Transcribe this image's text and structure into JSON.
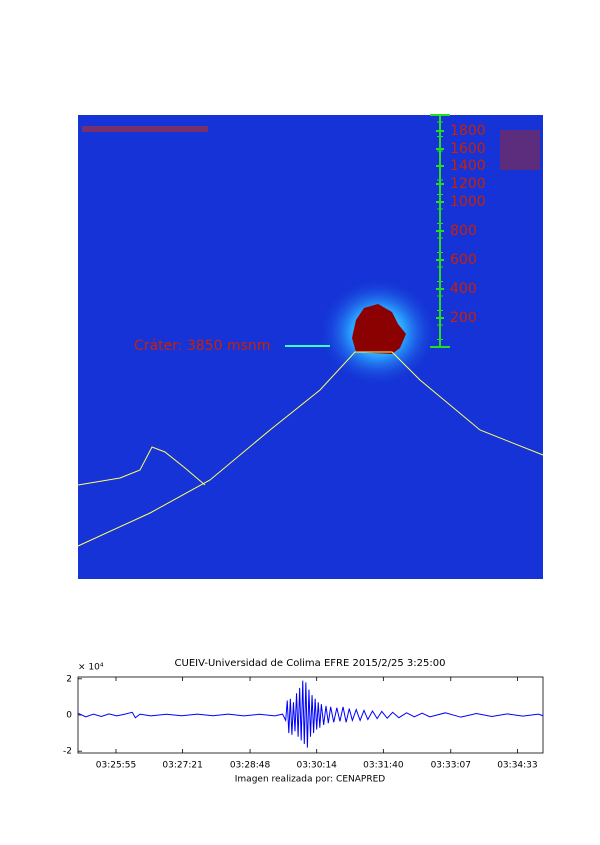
{
  "image": {
    "crater_label": "Cráter: 3850 msnm",
    "scale_labels": [
      1800,
      1600,
      1400,
      1200,
      1000,
      800,
      600,
      400,
      200
    ]
  },
  "chart_data": {
    "type": "line",
    "title": "CUEIV-Universidad de Colima EFRE 2015/2/25 3:25:00",
    "x_label": "Imagen realizada por: CENAPRED",
    "y_scale_label": "× 10⁴",
    "color": "#0000ff",
    "x": [
      6,
      16,
      26,
      36,
      46,
      56,
      66,
      76,
      80,
      86,
      100,
      120,
      140,
      160,
      180,
      200,
      220,
      240,
      260,
      270,
      274,
      276,
      278,
      280,
      282,
      284,
      286,
      288,
      290,
      292,
      294,
      296,
      298,
      300,
      302,
      304,
      306,
      308,
      310,
      312,
      314,
      316,
      318,
      320,
      323,
      326,
      329,
      332,
      336,
      340,
      344,
      348,
      352,
      356,
      360,
      365,
      370,
      375,
      380,
      386,
      392,
      398,
      405,
      412,
      420,
      430,
      440,
      450,
      460,
      480,
      500,
      520,
      540,
      560,
      580,
      600,
      606
    ],
    "values": [
      0.1,
      -0.1,
      0.05,
      -0.08,
      0.06,
      -0.05,
      0.04,
      0.15,
      -0.15,
      0.05,
      -0.05,
      0.04,
      -0.04,
      0.05,
      -0.04,
      0.05,
      -0.05,
      0.04,
      -0.05,
      0.05,
      -0.3,
      0.8,
      -1.0,
      0.9,
      -1.1,
      0.7,
      -0.9,
      1.2,
      -1.2,
      1.5,
      -1.4,
      1.9,
      -1.6,
      1.8,
      -1.8,
      1.4,
      -1.2,
      1.1,
      -1.0,
      0.9,
      -0.8,
      0.7,
      -0.7,
      0.6,
      -0.55,
      0.5,
      -0.45,
      0.45,
      -0.4,
      0.4,
      -0.35,
      0.45,
      -0.4,
      0.35,
      -0.3,
      0.3,
      -0.3,
      0.25,
      -0.25,
      0.22,
      -0.2,
      0.2,
      -0.18,
      0.15,
      -0.15,
      0.12,
      -0.1,
      0.1,
      -0.1,
      0.12,
      -0.12,
      0.08,
      -0.08,
      0.06,
      -0.06,
      0.05,
      -0.04
    ],
    "xlim": [
      6,
      606
    ],
    "ylim": [
      -2.1,
      2.1
    ],
    "yticks": [
      2,
      0,
      -2
    ],
    "xticks": [
      {
        "value": 55,
        "label": "03:25:55"
      },
      {
        "value": 141,
        "label": "03:27:21"
      },
      {
        "value": 228,
        "label": "03:28:48"
      },
      {
        "value": 314,
        "label": "03:30:14"
      },
      {
        "value": 400,
        "label": "03:31:40"
      },
      {
        "value": 487,
        "label": "03:33:07"
      },
      {
        "value": 573,
        "label": "03:34:33"
      }
    ],
    "grid": false
  }
}
